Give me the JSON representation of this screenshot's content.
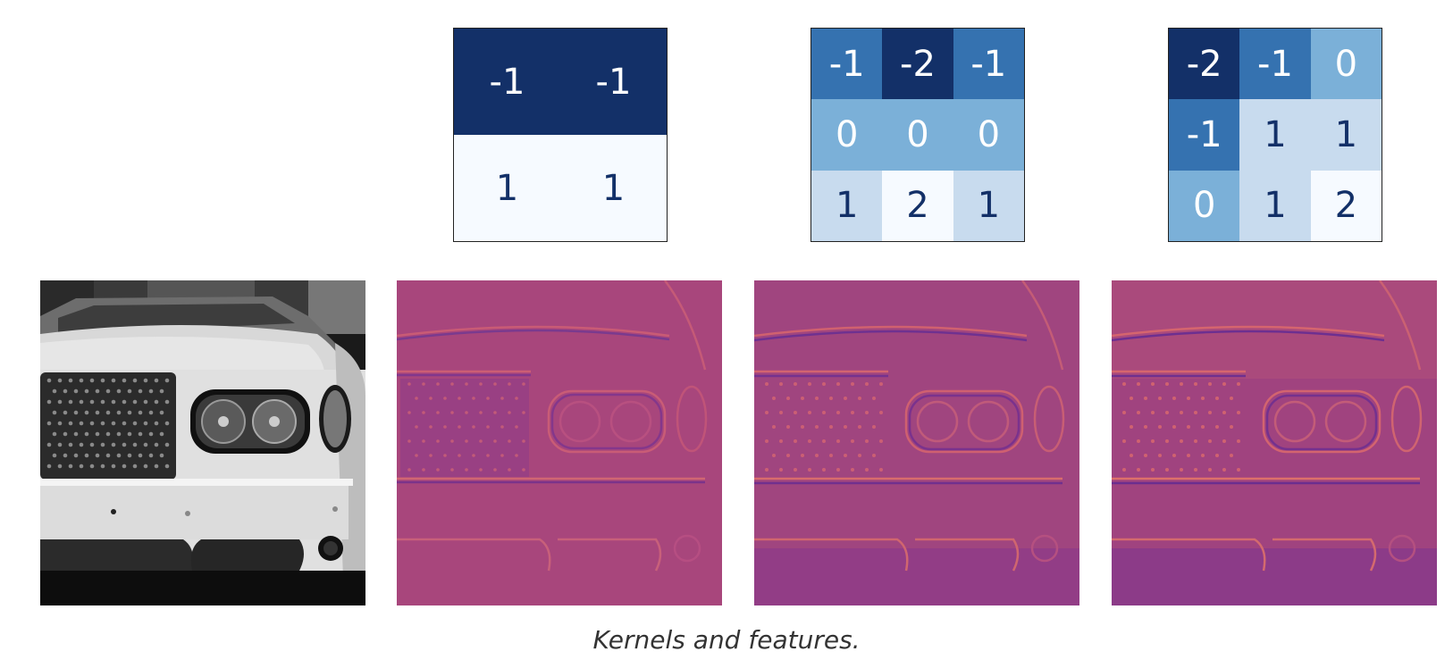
{
  "kernels": [
    {
      "rows": [
        [
          "-1",
          "-1"
        ],
        [
          "1",
          "1"
        ]
      ]
    },
    {
      "rows": [
        [
          "-1",
          "-2",
          "-1"
        ],
        [
          "0",
          "0",
          "0"
        ],
        [
          "1",
          "2",
          "1"
        ]
      ]
    },
    {
      "rows": [
        [
          "-2",
          "-1",
          "0"
        ],
        [
          "-1",
          "1",
          "1"
        ],
        [
          "0",
          "1",
          "2"
        ]
      ]
    }
  ],
  "images": [
    {
      "style": "grayscale"
    },
    {
      "style": "magma-feature"
    },
    {
      "style": "magma-feature"
    },
    {
      "style": "magma-feature"
    }
  ],
  "caption": "Kernels and features.",
  "colors": {
    "blue_very_dark": "#133068",
    "blue_mid": "#3572b0",
    "blue_light": "#7bb0d8",
    "blue_pale": "#c8dbee",
    "blue_white": "#f6faff",
    "feature_base": "#a8457d"
  }
}
